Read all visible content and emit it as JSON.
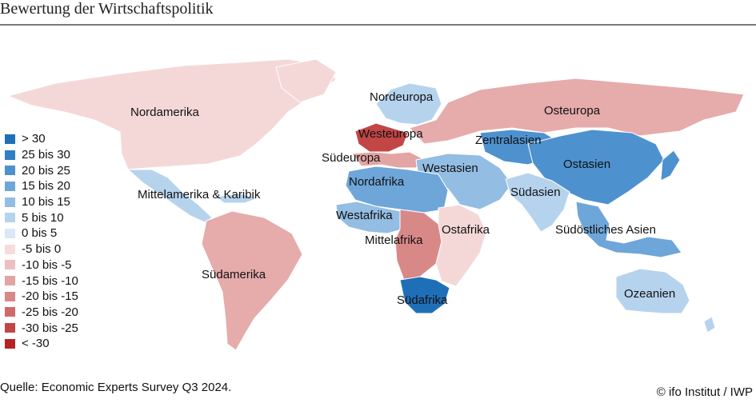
{
  "title": "Bewertung der Wirtschaftspolitik",
  "legend": [
    {
      "label": "> 30",
      "color": "#1f6fb8"
    },
    {
      "label": "25 bis 30",
      "color": "#2f7fc4"
    },
    {
      "label": "20 bis 25",
      "color": "#4e91cf"
    },
    {
      "label": "15 bis 20",
      "color": "#6ea6d9"
    },
    {
      "label": "10 bis 15",
      "color": "#93bde3"
    },
    {
      "label": "5 bis 10",
      "color": "#b6d3ee"
    },
    {
      "label": "0 bis 5",
      "color": "#d9e8f6"
    },
    {
      "label": "-5 bis 0",
      "color": "#f6dcdc"
    },
    {
      "label": "-10 bis -5",
      "color": "#ecc0c0"
    },
    {
      "label": "-15 bis -10",
      "color": "#e3a4a4"
    },
    {
      "label": "-20 bis -15",
      "color": "#d98888"
    },
    {
      "label": "-25 bis -20",
      "color": "#cf6a6a"
    },
    {
      "label": "-30 bis -25",
      "color": "#c24646"
    },
    {
      "label": "< -30",
      "color": "#b52323"
    }
  ],
  "regions": {
    "nordamerika": {
      "label": "Nordamerika",
      "color": "#f4d8d8"
    },
    "mittelamerika": {
      "label": "Mittelamerika & Karibik",
      "color": "#b6d3ee"
    },
    "suedamerika": {
      "label": "Südamerika",
      "color": "#e6abab"
    },
    "nordeuropa": {
      "label": "Nordeuropa",
      "color": "#b6d3ee"
    },
    "westeuropa": {
      "label": "Westeuropa",
      "color": "#c24646"
    },
    "suedeuropa": {
      "label": "Südeuropa",
      "color": "#e3a4a4"
    },
    "osteuropa": {
      "label": "Osteuropa",
      "color": "#e6abab"
    },
    "zentralasien": {
      "label": "Zentralasien",
      "color": "#4e91cf"
    },
    "westasien": {
      "label": "Westasien",
      "color": "#93bde3"
    },
    "ostasien": {
      "label": "Ostasien",
      "color": "#4e91cf"
    },
    "suedasien": {
      "label": "Südasien",
      "color": "#b6d3ee"
    },
    "suedostasien": {
      "label": "Südöstliches Asien",
      "color": "#6ea6d9"
    },
    "nordafrika": {
      "label": "Nordafrika",
      "color": "#6ea6d9"
    },
    "westafrika": {
      "label": "Westafrika",
      "color": "#93bde3"
    },
    "mittelafrika": {
      "label": "Mittelafrika",
      "color": "#d98888"
    },
    "ostafrika": {
      "label": "Ostafrika",
      "color": "#f4d8d8"
    },
    "suedafrika": {
      "label": "Südafrika",
      "color": "#1f6fb8"
    },
    "ozeanien": {
      "label": "Ozeanien",
      "color": "#b6d3ee"
    }
  },
  "source": "Quelle: Economic Experts Survey Q3 2024.",
  "copyright": "© ifo Institut / IWP"
}
